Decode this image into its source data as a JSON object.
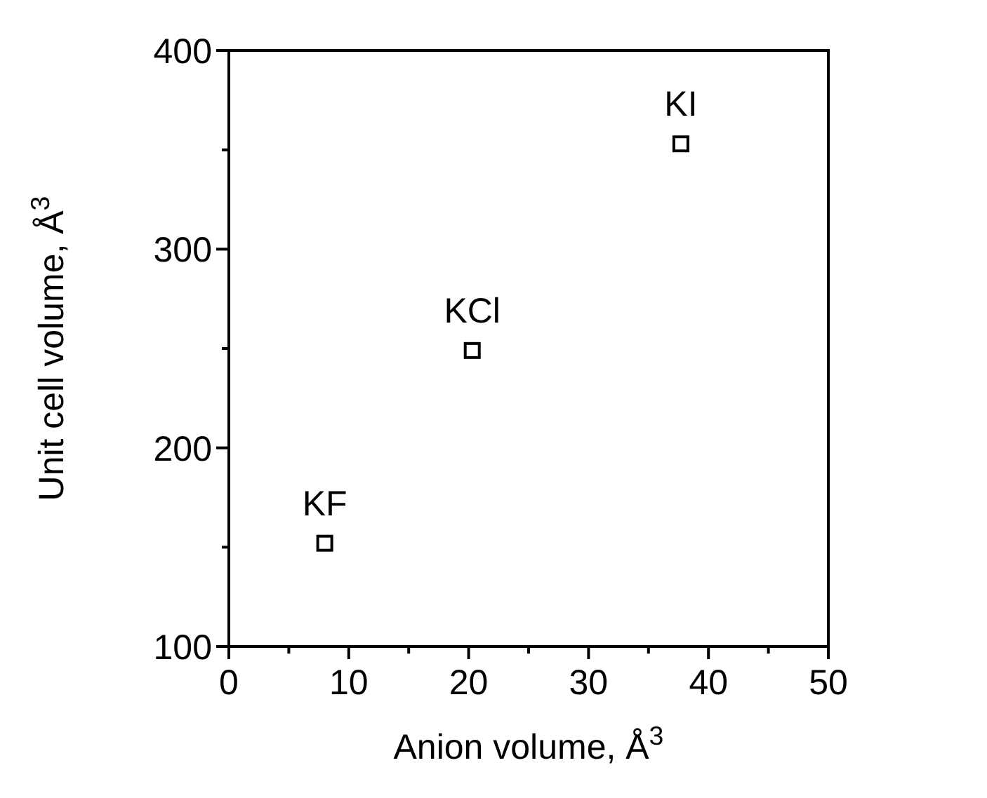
{
  "chart_data": {
    "type": "scatter",
    "xlabel": "Anion volume, Å$^{3}$",
    "ylabel": "Unit cell volume, Å$^{3}$",
    "x": [
      8.0,
      20.3,
      37.7
    ],
    "series": [
      {
        "color": "#000000",
        "values": [
          152,
          249,
          353
        ]
      }
    ],
    "marker": "square",
    "annotations": [
      {
        "text": "KF",
        "x": 8.0,
        "y": 152
      },
      {
        "text": "KCl",
        "x": 20.3,
        "y": 249
      },
      {
        "text": "KI",
        "x": 37.7,
        "y": 353
      }
    ],
    "xlim": [
      0,
      50
    ],
    "ylim": [
      100,
      400
    ],
    "xticks": [
      0,
      {
        "value": 5,
        "label": null
      },
      10,
      {
        "value": 15,
        "label": null
      },
      20,
      {
        "value": 25,
        "label": null
      },
      30,
      {
        "value": 35,
        "label": null
      },
      40,
      {
        "value": 45,
        "label": null
      },
      50
    ],
    "yticks": [
      100,
      {
        "value": 150,
        "label": null
      },
      200,
      {
        "value": 250,
        "label": null
      },
      300,
      {
        "value": 350,
        "label": null
      },
      400
    ],
    "grid": false
  }
}
